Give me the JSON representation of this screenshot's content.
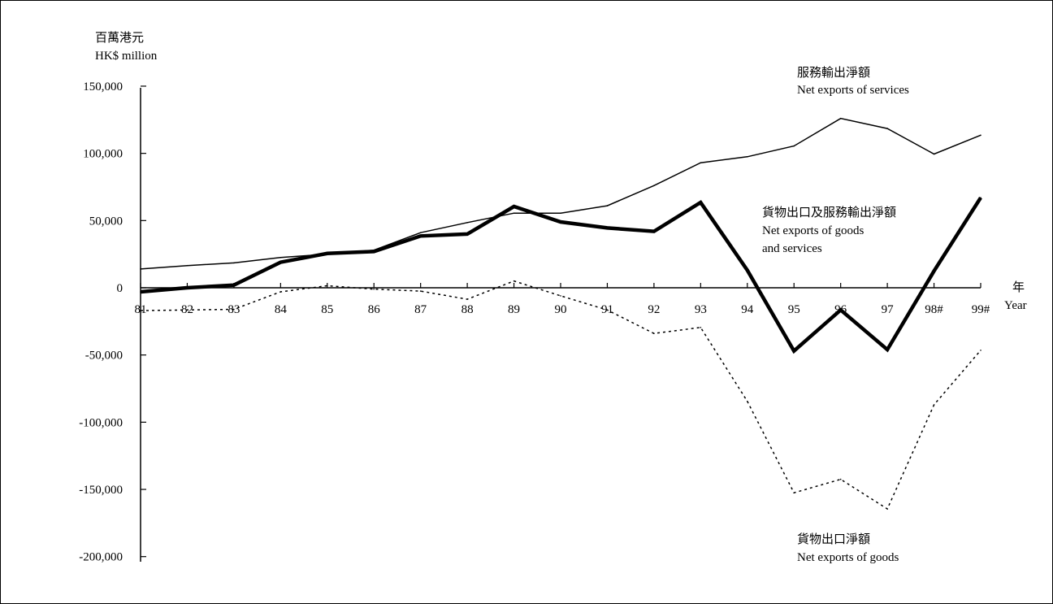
{
  "chart_data": {
    "type": "line",
    "units": {
      "zh": "百萬港元",
      "en": "HK$ million"
    },
    "x_axis_label": {
      "zh": "年",
      "en": "Year"
    },
    "categories": [
      "81",
      "82",
      "83",
      "84",
      "85",
      "86",
      "87",
      "88",
      "89",
      "90",
      "91",
      "92",
      "93",
      "94",
      "95",
      "96",
      "97",
      "98#",
      "99#"
    ],
    "y_ticks": [
      "150,000",
      "100,000",
      "50,000",
      "0",
      "-50,000",
      "-100,000",
      "-150,000",
      "-200,000"
    ],
    "y_tick_values": [
      150000,
      100000,
      50000,
      0,
      -50000,
      -100000,
      -150000,
      -200000
    ],
    "ylim": [
      -200000,
      150000
    ],
    "grid": false,
    "series": [
      {
        "key": "services",
        "name": "Net exports of services",
        "name_zh": "服務輸出淨額",
        "style": "thin",
        "values": [
          14000,
          16500,
          18500,
          22500,
          25000,
          28000,
          41000,
          48500,
          55500,
          55500,
          61000,
          76000,
          93000,
          97500,
          105500,
          126000,
          118500,
          99500,
          113500
        ]
      },
      {
        "key": "goods_services",
        "name": "Net exports of goods and services",
        "name_zh": "貨物出口及服務輸出淨額",
        "name_lines": [
          "Net exports of goods",
          "and services"
        ],
        "style": "thick",
        "values": [
          -3000,
          0,
          2000,
          19000,
          25500,
          27000,
          38500,
          40000,
          60500,
          49000,
          44500,
          42000,
          63500,
          13000,
          -47000,
          -16500,
          -46000,
          12500,
          67000
        ]
      },
      {
        "key": "goods",
        "name": "Net exports of goods",
        "name_zh": "貨物出口淨額",
        "style": "dotted",
        "values": [
          -17000,
          -16500,
          -16000,
          -3000,
          1500,
          -1000,
          -2500,
          -8500,
          5000,
          -6000,
          -16500,
          -34000,
          -29500,
          -84500,
          -152500,
          -142500,
          -164500,
          -87000,
          -46500
        ]
      }
    ]
  }
}
